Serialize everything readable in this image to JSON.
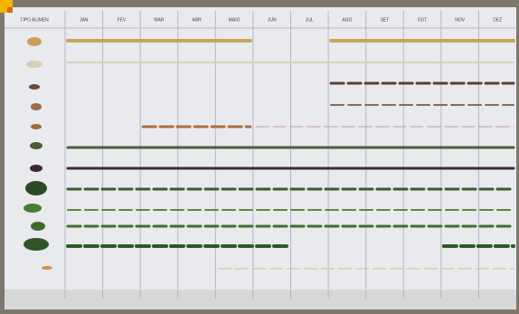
{
  "header": {
    "first_column": "TIPO ALIMEN",
    "months": [
      "JAN",
      "FEV",
      "MAR",
      "ABR",
      "MAIO",
      "JUN",
      "JUL",
      "AGO",
      "SET",
      "OUT",
      "NOV",
      "DEZ"
    ]
  }
}
